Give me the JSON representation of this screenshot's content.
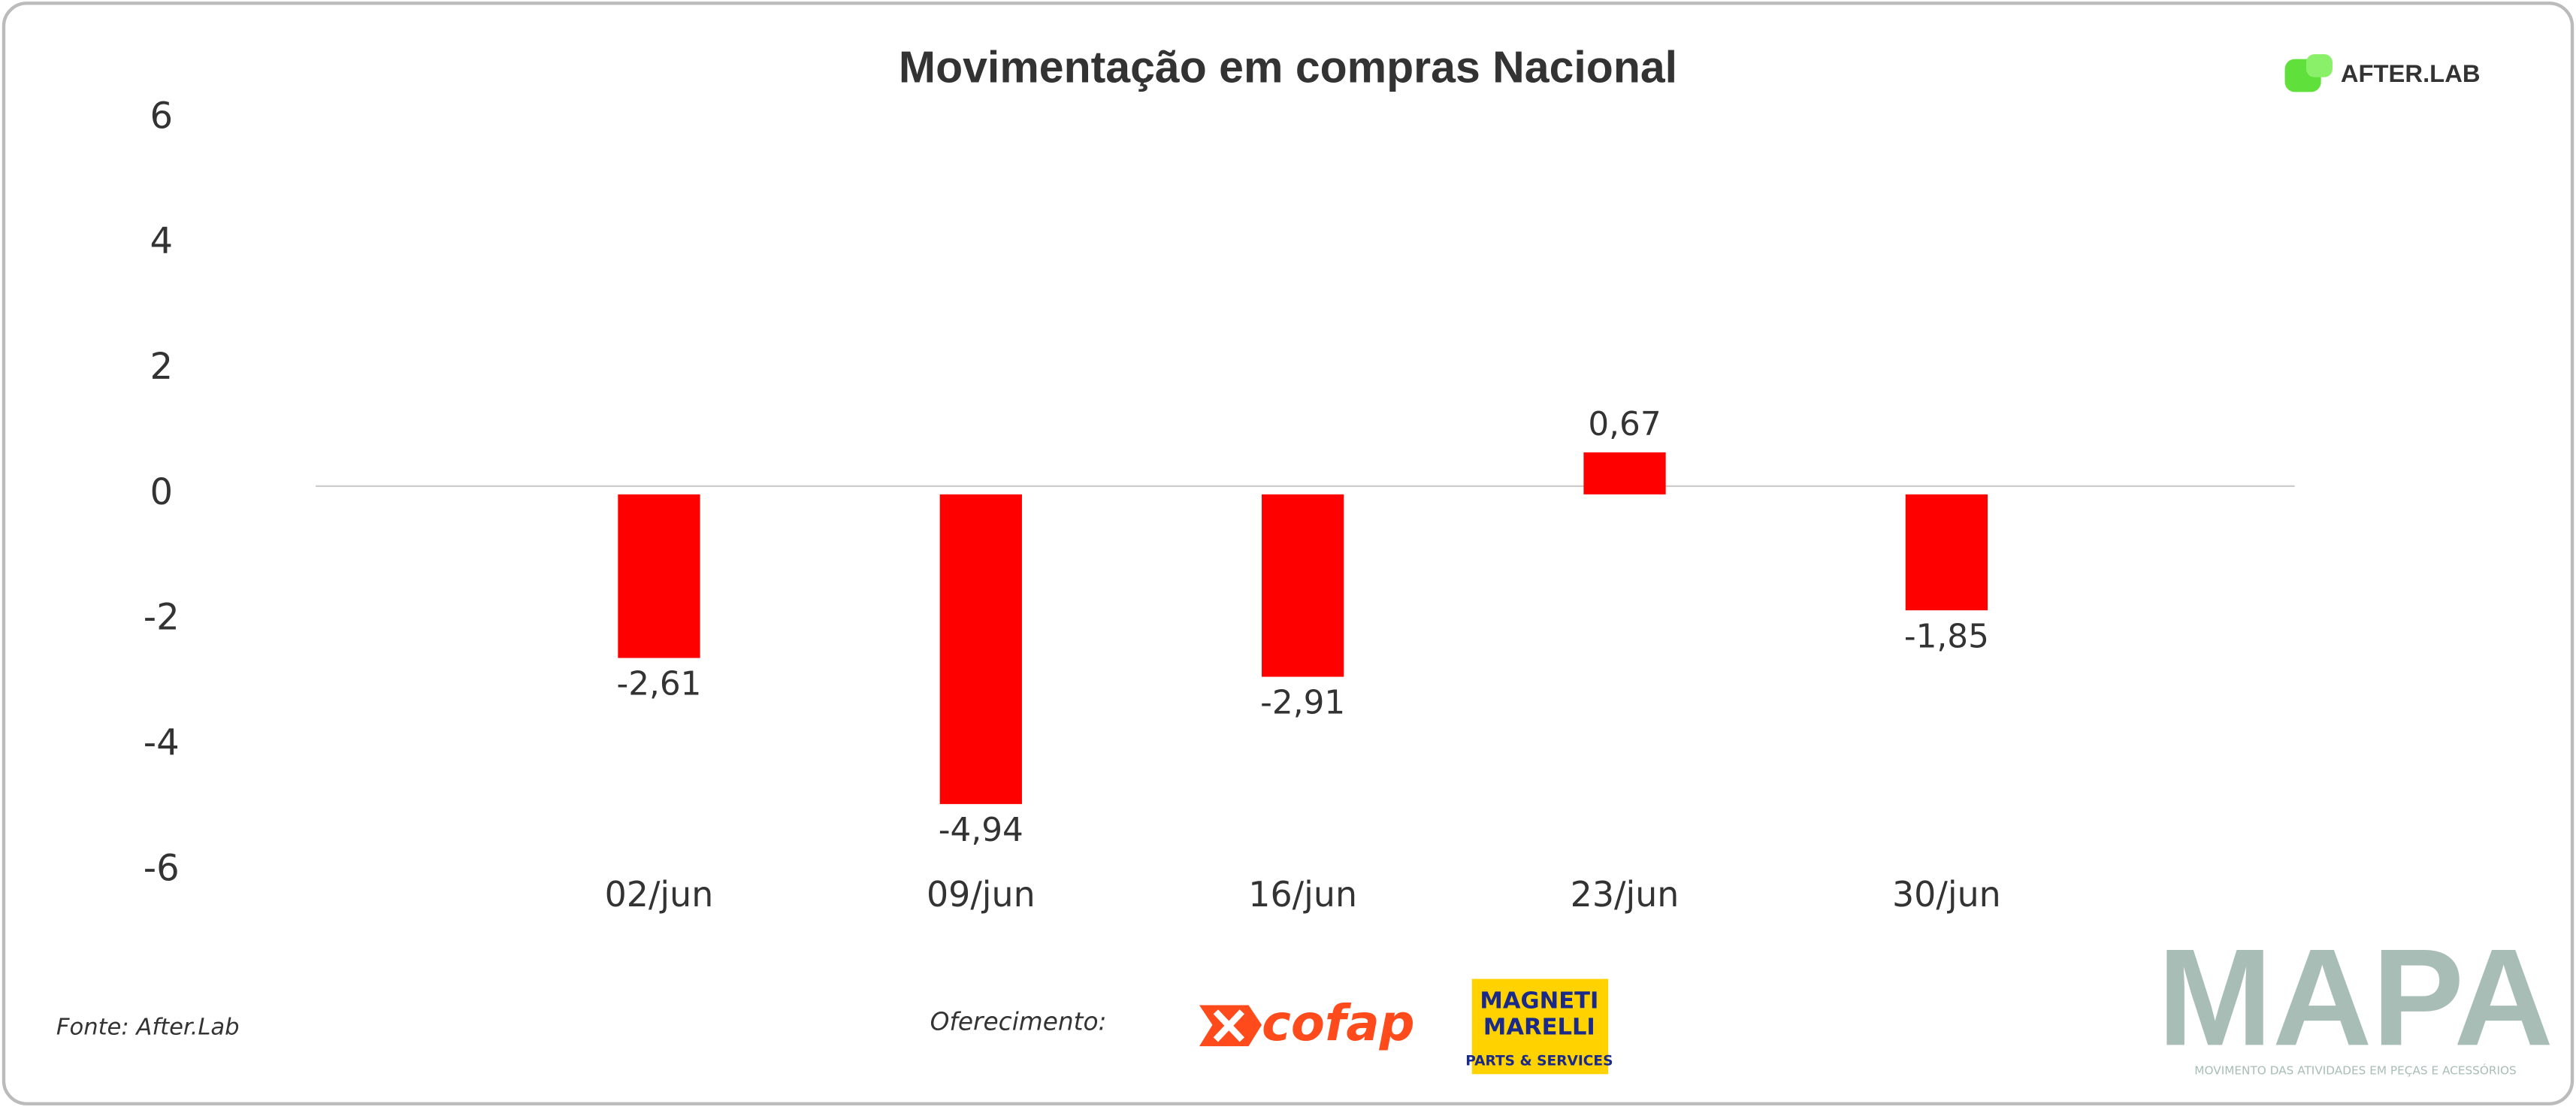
{
  "chart_data": {
    "type": "bar",
    "title": "Movimentação em compras Nacional",
    "categories": [
      "02/jun",
      "09/jun",
      "16/jun",
      "23/jun",
      "30/jun"
    ],
    "values": [
      -2.61,
      -4.94,
      -2.91,
      0.67,
      -1.85
    ],
    "value_labels": [
      "-2,61",
      "-4,94",
      "-2,91",
      "0,67",
      "-1,85"
    ],
    "color": "#ff0000",
    "ylim": [
      -6,
      6
    ],
    "yticks": [
      -6,
      -4,
      -2,
      0,
      2,
      4,
      6
    ],
    "grid": false
  },
  "header": {
    "brand": "AFTER.LAB"
  },
  "footer": {
    "source": "Fonte: After.Lab",
    "sponsor_label": "Oferecimento:",
    "sponsors": [
      "cofap",
      "MAGNETI",
      "MARELLI",
      "PARTS & SERVICES"
    ],
    "mapa": {
      "title": "MAPA",
      "subtitle": "MOVIMENTO DAS ATIVIDADES EM PEÇAS E ACESSÓRIOS"
    }
  }
}
